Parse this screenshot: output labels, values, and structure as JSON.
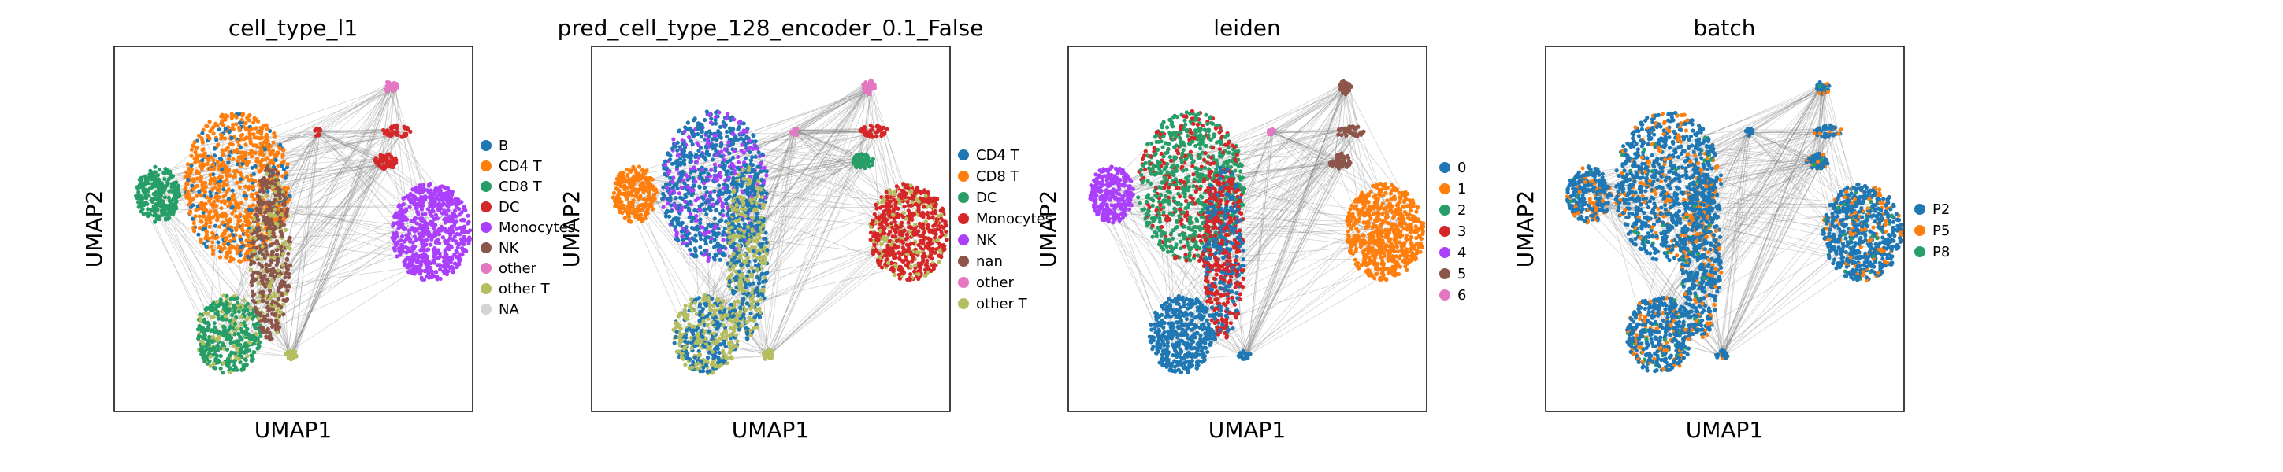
{
  "chart_data": [
    {
      "type": "scatter",
      "title": "cell_type_l1",
      "xlabel": "UMAP1",
      "ylabel": "UMAP2",
      "legend_placement": "right",
      "grid": false,
      "series": [
        {
          "name": "B",
          "color": "#1f77b4"
        },
        {
          "name": "CD4 T",
          "color": "#ff7f0e"
        },
        {
          "name": "CD8 T",
          "color": "#279e68"
        },
        {
          "name": "DC",
          "color": "#d62728"
        },
        {
          "name": "Monocytes",
          "color": "#aa40fc"
        },
        {
          "name": "NK",
          "color": "#8c564b"
        },
        {
          "name": "other",
          "color": "#e377c2"
        },
        {
          "name": "other T",
          "color": "#b5bd61"
        },
        {
          "name": "NA",
          "color": "#d3d3d3"
        }
      ]
    },
    {
      "type": "scatter",
      "title": "pred_cell_type_128_encoder_0.1_False",
      "xlabel": "UMAP1",
      "ylabel": "UMAP2",
      "legend_placement": "right",
      "grid": false,
      "series": [
        {
          "name": "CD4 T",
          "color": "#1f77b4"
        },
        {
          "name": "CD8 T",
          "color": "#ff7f0e"
        },
        {
          "name": "DC",
          "color": "#279e68"
        },
        {
          "name": "Monocytes",
          "color": "#d62728"
        },
        {
          "name": "NK",
          "color": "#aa40fc"
        },
        {
          "name": "nan",
          "color": "#8c564b"
        },
        {
          "name": "other",
          "color": "#e377c2"
        },
        {
          "name": "other T",
          "color": "#b5bd61"
        }
      ]
    },
    {
      "type": "scatter",
      "title": "leiden",
      "xlabel": "UMAP1",
      "ylabel": "UMAP2",
      "legend_placement": "right",
      "grid": false,
      "series": [
        {
          "name": "0",
          "color": "#1f77b4"
        },
        {
          "name": "1",
          "color": "#ff7f0e"
        },
        {
          "name": "2",
          "color": "#279e68"
        },
        {
          "name": "3",
          "color": "#d62728"
        },
        {
          "name": "4",
          "color": "#aa40fc"
        },
        {
          "name": "5",
          "color": "#8c564b"
        },
        {
          "name": "6",
          "color": "#e377c2"
        }
      ]
    },
    {
      "type": "scatter",
      "title": "batch",
      "xlabel": "UMAP1",
      "ylabel": "UMAP2",
      "legend_placement": "right",
      "grid": false,
      "series": [
        {
          "name": "P2",
          "color": "#1f77b4"
        },
        {
          "name": "P5",
          "color": "#ff7f0e"
        },
        {
          "name": "P8",
          "color": "#279e68"
        }
      ]
    }
  ]
}
